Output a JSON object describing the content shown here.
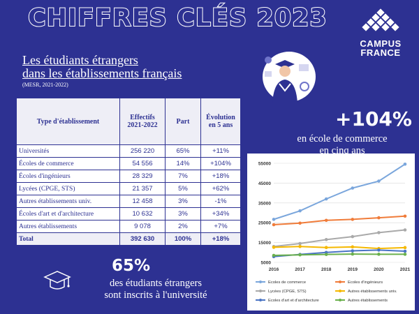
{
  "header": {
    "title": "CHIFFRES CLÉS 2023",
    "logo_line1": "CAMPUS",
    "logo_line2": "FRANCE"
  },
  "section": {
    "title_line1": "Les étudiants étrangers",
    "title_line2": "dans les établissements français",
    "source": "(MESR, 2021-2022)"
  },
  "table": {
    "headers": [
      "Type d'établissement",
      "Effectifs 2021-2022",
      "Part",
      "Évolution en 5 ans"
    ],
    "rows": [
      [
        "Universités",
        "256 220",
        "65%",
        "+11%"
      ],
      [
        "Écoles de commerce",
        "54 556",
        "14%",
        "+104%"
      ],
      [
        "Écoles d'ingénieurs",
        "28 329",
        "7%",
        "+18%"
      ],
      [
        "Lycées (CPGE, STS)",
        "21 357",
        "5%",
        "+62%"
      ],
      [
        "Autres établissements univ.",
        "12 458",
        "3%",
        "-1%"
      ],
      [
        "Écoles d'art et d'architecture",
        "10 632",
        "3%",
        "+34%"
      ],
      [
        "Autres établissements",
        "9 078",
        "2%",
        "+7%"
      ]
    ],
    "total": [
      "Total",
      "392 630",
      "100%",
      "+18%"
    ]
  },
  "kpi1": {
    "value": "+104%",
    "line1": "en école de commerce",
    "line2": "en cinq ans"
  },
  "kpi2": {
    "value": "65%",
    "line1": "des étudiants étrangers",
    "line2": "sont inscrits à l'université"
  },
  "colors": {
    "background": "#2d3192",
    "accent": "#ffffff"
  },
  "chart_data": {
    "type": "line",
    "x": [
      2016,
      2017,
      2018,
      2019,
      2020,
      2021
    ],
    "ylim": [
      5000,
      55000
    ],
    "yticks": [
      5000,
      15000,
      25000,
      35000,
      45000,
      55000
    ],
    "ytick_labels": [
      "5000",
      "15000",
      "25000",
      "35000",
      "45000",
      "55000"
    ],
    "grid": true,
    "legend_position": "bottom",
    "series": [
      {
        "name": "Ecoles de commerce",
        "color": "#7aa6dc",
        "values": [
          26700,
          31000,
          37000,
          42500,
          46000,
          54556
        ]
      },
      {
        "name": "Ecoles d'ingénieurs",
        "color": "#f07c3a",
        "values": [
          24000,
          24800,
          26200,
          26700,
          27500,
          28329
        ]
      },
      {
        "name": "Lycées (CPGE, STS)",
        "color": "#a9a9a9",
        "values": [
          13000,
          14500,
          16500,
          18000,
          20000,
          21357
        ]
      },
      {
        "name": "Autres établissements univ.",
        "color": "#f5b800",
        "values": [
          12600,
          13000,
          12500,
          12800,
          12000,
          12458
        ]
      },
      {
        "name": "Ecoles d'art et d'architecture",
        "color": "#4a74c4",
        "values": [
          7900,
          9000,
          10000,
          10800,
          11200,
          10632
        ]
      },
      {
        "name": "Autres établissements",
        "color": "#6ab04c",
        "values": [
          8500,
          8800,
          9000,
          9200,
          9100,
          9078
        ]
      }
    ]
  }
}
